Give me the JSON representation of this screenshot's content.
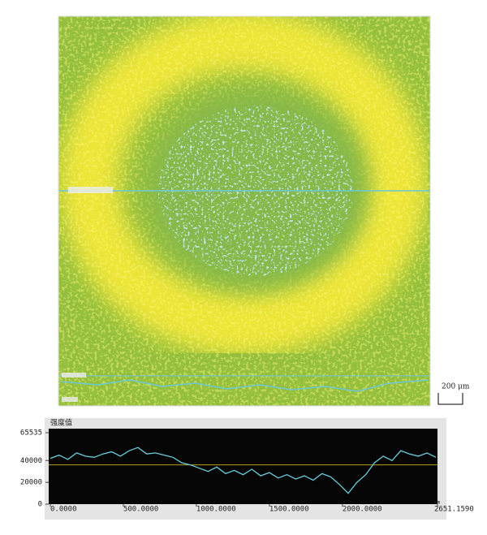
{
  "chart_data": {
    "type": "line",
    "title": "强度值",
    "x_unit": "um",
    "x": [
      0,
      60,
      120,
      180,
      240,
      300,
      360,
      420,
      480,
      540,
      600,
      660,
      720,
      780,
      840,
      900,
      960,
      1020,
      1080,
      1140,
      1200,
      1260,
      1320,
      1380,
      1440,
      1500,
      1560,
      1620,
      1680,
      1740,
      1800,
      1860,
      1920,
      1980,
      2040,
      2100,
      2160,
      2220,
      2280,
      2340,
      2400,
      2460,
      2520,
      2580,
      2640
    ],
    "series": [
      {
        "name": "intensity",
        "color": "#66d0dc",
        "values": [
          42000,
          45000,
          41000,
          47000,
          44000,
          43000,
          46000,
          48000,
          44000,
          49000,
          52000,
          46000,
          47000,
          45000,
          43000,
          38000,
          36000,
          33000,
          30000,
          34000,
          28000,
          31000,
          27000,
          32000,
          26000,
          29000,
          24000,
          27000,
          23000,
          26000,
          22000,
          28000,
          25000,
          18000,
          10000,
          20000,
          27000,
          38000,
          44000,
          40000,
          49000,
          46000,
          44000,
          47000,
          43000
        ]
      }
    ],
    "reference_line": 36000,
    "reference_color": "#b8a020",
    "xlim": [
      0,
      2651.159
    ],
    "xticks": [
      {
        "value": 0,
        "label": "0.0000"
      },
      {
        "value": 500,
        "label": "500.0000"
      },
      {
        "value": 1000,
        "label": "1000.0000"
      },
      {
        "value": 1500,
        "label": "1500.0000"
      },
      {
        "value": 2000,
        "label": "2000.0000"
      },
      {
        "value": 2651.159,
        "label": "2651.1590"
      }
    ],
    "ylim": [
      0,
      65535
    ],
    "yticks": [
      0,
      20000,
      40000,
      65535
    ]
  },
  "scale_bar": "200 μm"
}
